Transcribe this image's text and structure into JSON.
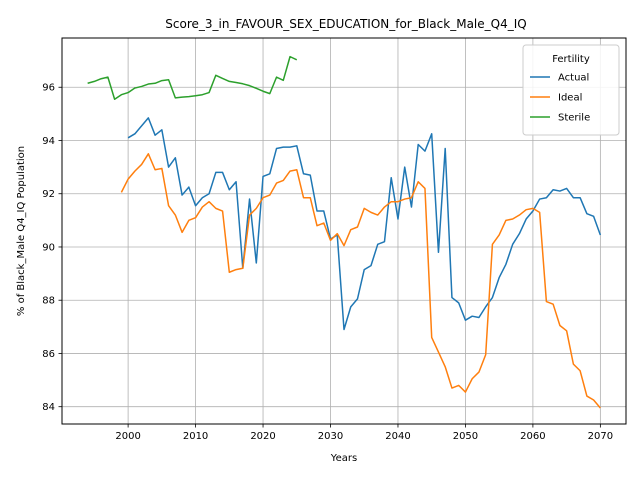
{
  "chart_data": {
    "type": "line",
    "title": "Score_3_in_FAVOUR_SEX_EDUCATION_for_Black_Male_Q4_IQ",
    "xlabel": "Years",
    "ylabel": "% of Black_Male Q4_IQ Population",
    "xlim": [
      1990.2,
      2073.8
    ],
    "ylim": [
      83.35,
      97.85
    ],
    "xticks": [
      2000,
      2010,
      2020,
      2030,
      2040,
      2050,
      2060,
      2070
    ],
    "yticks": [
      84,
      86,
      88,
      90,
      92,
      94,
      96
    ],
    "grid": true,
    "legend": {
      "title": "Fertility",
      "position": "top-right"
    },
    "series": [
      {
        "name": "Actual",
        "color": "#1f77b4",
        "x": [
          2000,
          2001,
          2002,
          2003,
          2004,
          2005,
          2006,
          2007,
          2008,
          2009,
          2010,
          2011,
          2012,
          2013,
          2014,
          2015,
          2016,
          2017,
          2018,
          2019,
          2020,
          2021,
          2022,
          2023,
          2024,
          2025,
          2026,
          2027,
          2028,
          2029,
          2030,
          2031,
          2032,
          2033,
          2034,
          2035,
          2036,
          2037,
          2038,
          2039,
          2040,
          2041,
          2042,
          2043,
          2044,
          2045,
          2046,
          2047,
          2048,
          2049,
          2050,
          2051,
          2052,
          2053,
          2054,
          2055,
          2056,
          2057,
          2058,
          2059,
          2060,
          2061,
          2062,
          2063,
          2064,
          2065,
          2066,
          2067,
          2068,
          2069,
          2070
        ],
        "values": [
          94.1,
          94.25,
          94.55,
          94.85,
          94.2,
          94.4,
          93.0,
          93.35,
          91.95,
          92.25,
          91.55,
          91.85,
          92.0,
          92.8,
          92.8,
          92.15,
          92.45,
          89.2,
          91.8,
          89.4,
          92.65,
          92.75,
          93.7,
          93.75,
          93.75,
          93.8,
          92.75,
          92.7,
          91.35,
          91.35,
          90.3,
          90.45,
          86.9,
          87.75,
          88.05,
          89.15,
          89.3,
          90.1,
          90.2,
          92.6,
          91.05,
          93.0,
          91.5,
          93.85,
          93.6,
          94.25,
          89.8,
          93.7,
          88.1,
          87.9,
          87.25,
          87.4,
          87.35,
          87.75,
          88.1,
          88.85,
          89.35,
          90.1,
          90.5,
          91.05,
          91.35,
          91.8,
          91.85,
          92.15,
          92.1,
          92.2,
          91.85,
          91.85,
          91.25,
          91.15,
          90.45
        ]
      },
      {
        "name": "Ideal",
        "color": "#ff7f0e",
        "x": [
          1999,
          2000,
          2001,
          2002,
          2003,
          2004,
          2005,
          2006,
          2007,
          2008,
          2009,
          2010,
          2011,
          2012,
          2013,
          2014,
          2015,
          2016,
          2017,
          2018,
          2019,
          2020,
          2021,
          2022,
          2023,
          2024,
          2025,
          2026,
          2027,
          2028,
          2029,
          2030,
          2031,
          2032,
          2033,
          2034,
          2035,
          2036,
          2037,
          2038,
          2039,
          2040,
          2041,
          2042,
          2043,
          2044,
          2045,
          2046,
          2047,
          2048,
          2049,
          2050,
          2051,
          2052,
          2053,
          2054,
          2055,
          2056,
          2057,
          2058,
          2059,
          2060,
          2061,
          2062,
          2063,
          2064,
          2065,
          2066,
          2067,
          2068,
          2069,
          2070
        ],
        "values": [
          92.05,
          92.55,
          92.85,
          93.1,
          93.5,
          92.9,
          92.95,
          91.55,
          91.2,
          90.55,
          91.0,
          91.1,
          91.5,
          91.7,
          91.45,
          91.35,
          89.05,
          89.15,
          89.2,
          91.2,
          91.45,
          91.85,
          91.95,
          92.4,
          92.5,
          92.85,
          92.9,
          91.85,
          91.85,
          90.8,
          90.9,
          90.25,
          90.5,
          90.05,
          90.65,
          90.75,
          91.45,
          91.3,
          91.2,
          91.5,
          91.7,
          91.7,
          91.8,
          91.85,
          92.45,
          92.2,
          86.6,
          86.05,
          85.5,
          84.7,
          84.8,
          84.55,
          85.05,
          85.3,
          85.95,
          90.1,
          90.45,
          91.0,
          91.05,
          91.2,
          91.4,
          91.45,
          91.3,
          87.95,
          87.85,
          87.05,
          86.85,
          85.6,
          85.35,
          84.4,
          84.25,
          83.95
        ]
      },
      {
        "name": "Sterile",
        "color": "#2ca02c",
        "x": [
          1994,
          1995,
          1996,
          1997,
          1998,
          1999,
          2000,
          2001,
          2002,
          2003,
          2004,
          2005,
          2006,
          2007,
          2008,
          2009,
          2010,
          2011,
          2012,
          2013,
          2014,
          2015,
          2016,
          2017,
          2018,
          2019,
          2020,
          2021,
          2022,
          2023,
          2024,
          2025
        ],
        "values": [
          96.15,
          96.22,
          96.32,
          96.38,
          95.55,
          95.72,
          95.8,
          95.97,
          96.03,
          96.12,
          96.15,
          96.25,
          96.28,
          95.6,
          95.63,
          95.65,
          95.68,
          95.72,
          95.8,
          96.45,
          96.33,
          96.22,
          96.18,
          96.13,
          96.06,
          95.96,
          95.85,
          95.76,
          96.38,
          96.26,
          97.15,
          97.03
        ]
      }
    ]
  }
}
